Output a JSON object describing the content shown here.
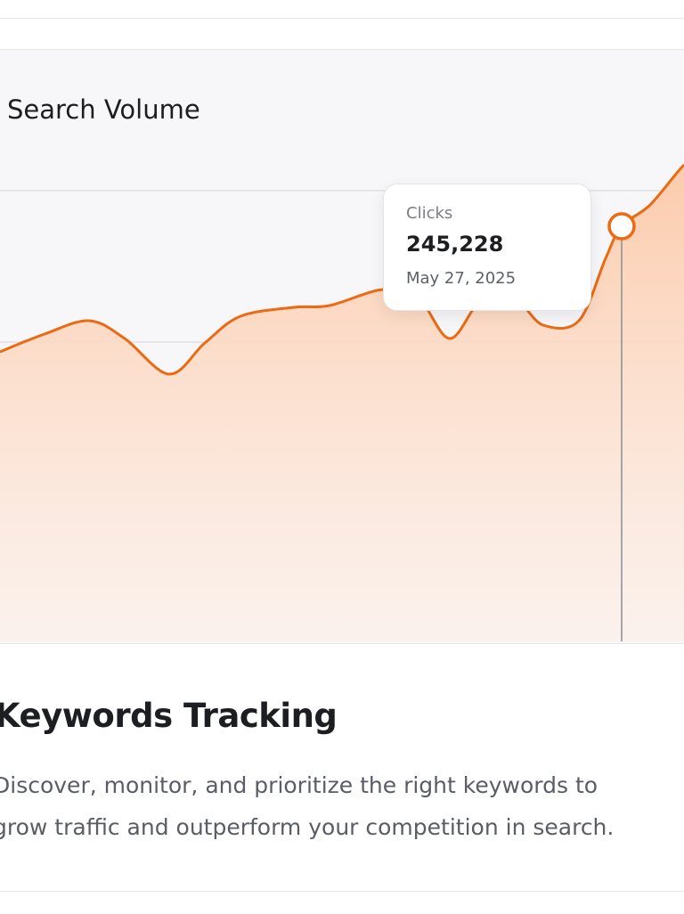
{
  "card": {
    "title": "Search Volume",
    "tooltip": {
      "label": "Clicks",
      "value": "245,228",
      "date": "May 27, 2025"
    },
    "heading": "Keywords Tracking",
    "description": [
      "Discover, monitor, and prioritize the right keywords to",
      "grow traffic and outperform your competition in search."
    ]
  }
}
